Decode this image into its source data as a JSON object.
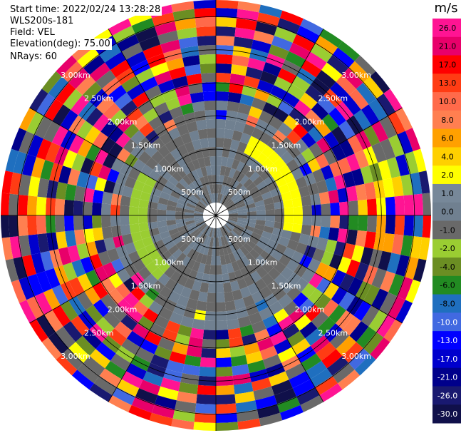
{
  "header": {
    "start_time": "Start time: 2022/02/24 13:28:28",
    "instrument": "WLS200s-181",
    "field": "Field: VEL",
    "elevation": "Elevation(deg): 75.00",
    "nrays": "NRays: 60"
  },
  "colorbar": {
    "unit": "m/s",
    "levels": [
      {
        "label": "26.0",
        "color": "#ff1493"
      },
      {
        "label": "21.0",
        "color": "#e8006a"
      },
      {
        "label": "17.0",
        "color": "#ff0000"
      },
      {
        "label": "13.0",
        "color": "#ff3c14"
      },
      {
        "label": "10.0",
        "color": "#ff6a4a"
      },
      {
        "label": "8.0",
        "color": "#ff7f50"
      },
      {
        "label": "6.0",
        "color": "#ffa000"
      },
      {
        "label": "4.0",
        "color": "#ffd000"
      },
      {
        "label": "2.0",
        "color": "#ffff00"
      },
      {
        "label": "1.0",
        "color": "#778899"
      },
      {
        "label": "0.0",
        "color": "#708090"
      },
      {
        "label": "-1.0",
        "color": "#696969"
      },
      {
        "label": "-2.0",
        "color": "#9acd32"
      },
      {
        "label": "-4.0",
        "color": "#6b8e23"
      },
      {
        "label": "-6.0",
        "color": "#228b22"
      },
      {
        "label": "-8.0",
        "color": "#1f6fbf"
      },
      {
        "label": "-10.0",
        "color": "#4169e1"
      },
      {
        "label": "-13.0",
        "color": "#0000ff"
      },
      {
        "label": "-17.0",
        "color": "#0000cd"
      },
      {
        "label": "-21.0",
        "color": "#00008b"
      },
      {
        "label": "-26.0",
        "color": "#191970"
      },
      {
        "label": "-30.0",
        "color": "#10104a"
      }
    ]
  },
  "chart_data": {
    "type": "heatmap",
    "title": "",
    "projection": "polar (PPI scan)",
    "field": "VEL",
    "units": "m/s",
    "nrays": 60,
    "elevation_deg": 75.0,
    "range_rings": [
      {
        "label": "500m"
      },
      {
        "label": "1.00km"
      },
      {
        "label": "1.50km"
      },
      {
        "label": "2.00km"
      },
      {
        "label": "2.50km"
      },
      {
        "label": "3.00km"
      }
    ],
    "ring_distances_m": [
      500,
      1000,
      1500,
      2000,
      2500,
      3000
    ],
    "max_range_m": 3250,
    "spokes_deg": [
      0,
      30,
      60,
      90,
      120,
      150,
      180,
      210,
      240,
      270,
      300,
      330
    ],
    "description_levels": {
      "inner_region": "values near 0 to -1 m/s (grey)",
      "outer_region": "mixed high positive and negative velocities (noise)"
    }
  }
}
